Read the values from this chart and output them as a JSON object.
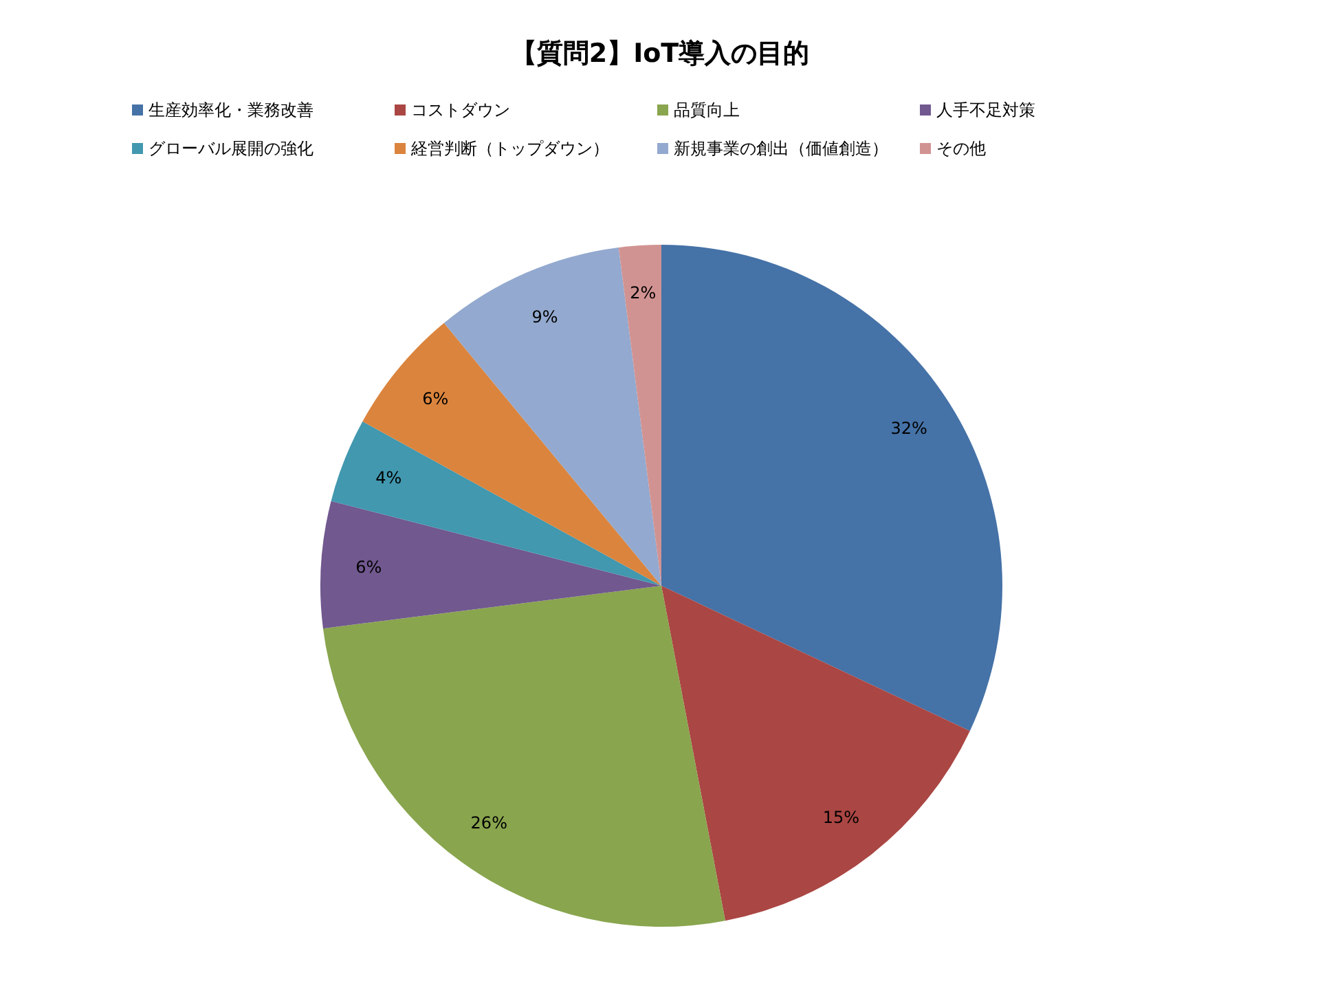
{
  "chart_data": {
    "type": "pie",
    "title": "【質問2】IoT導入の目的",
    "categories": [
      "生産効率化・業務改善",
      "コストダウン",
      "品質向上",
      "人手不足対策",
      "グローバル展開の強化",
      "経営判断（トップダウン）",
      "新規事業の創出（価値創造）",
      "その他"
    ],
    "values": [
      32,
      15,
      26,
      6,
      4,
      6,
      9,
      2
    ],
    "colors": [
      "#4572a7",
      "#aa4643",
      "#89a54e",
      "#71588f",
      "#4198af",
      "#db843d",
      "#93a9cf",
      "#d19392"
    ],
    "value_labels": [
      "32%",
      "15%",
      "26%",
      "6%",
      "4%",
      "6%",
      "9%",
      "2%"
    ],
    "legend": "top"
  }
}
